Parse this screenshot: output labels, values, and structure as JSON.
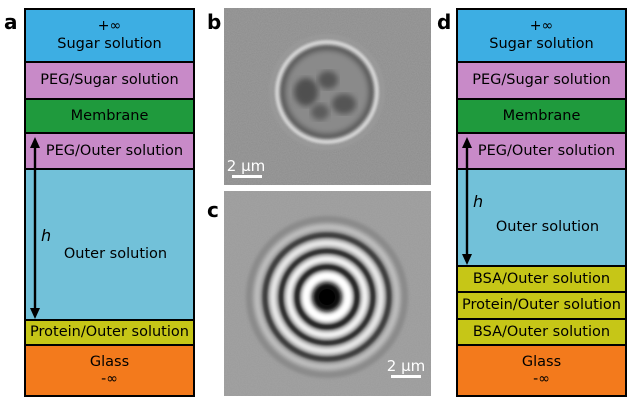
{
  "panels": {
    "a": "a",
    "b": "b",
    "c": "c",
    "d": "d"
  },
  "stack_a": {
    "sugar": {
      "sym": "+∞",
      "label": "Sugar solution"
    },
    "peg_sugar": "PEG/Sugar solution",
    "membrane": "Membrane",
    "peg_outer": "PEG/Outer solution",
    "outer": "Outer solution",
    "protein_outer": "Protein/Outer solution",
    "glass": {
      "label": "Glass",
      "sym": "-∞"
    },
    "h": "h"
  },
  "stack_d": {
    "sugar": {
      "sym": "+∞",
      "label": "Sugar solution"
    },
    "peg_sugar": "PEG/Sugar solution",
    "membrane": "Membrane",
    "peg_outer": "PEG/Outer solution",
    "outer": "Outer solution",
    "bsa_outer_1": "BSA/Outer solution",
    "protein_outer": "Protein/Outer solution",
    "bsa_outer_2": "BSA/Outer solution",
    "glass": {
      "label": "Glass",
      "sym": "-∞"
    },
    "h": "h"
  },
  "micrographs": {
    "b_scale": "2 µm",
    "c_scale": "2 µm"
  },
  "colors": {
    "sugar": "#3daee3",
    "peg": "#c88ac8",
    "membrane": "#1f9a3d",
    "outer": "#72c1d9",
    "protein": "#c6c617",
    "glass": "#f37a1c"
  }
}
